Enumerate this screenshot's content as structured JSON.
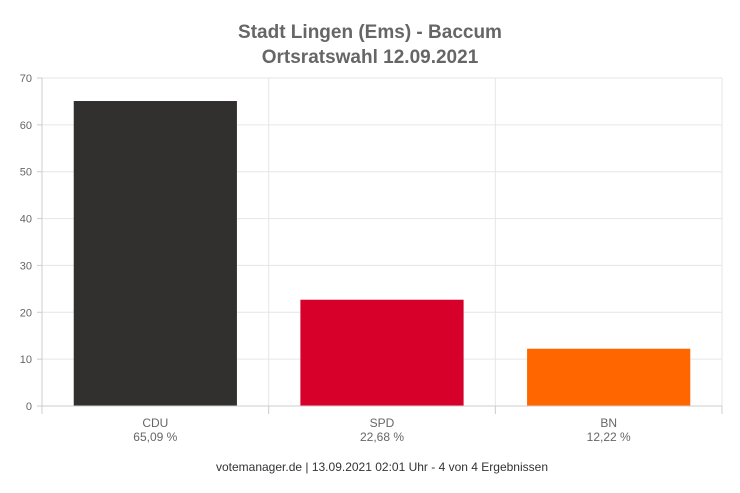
{
  "chart_data": {
    "type": "bar",
    "title_line1": "Stadt Lingen (Ems) - Baccum",
    "title_line2": "Ortsratswahl 12.09.2021",
    "categories": [
      "CDU",
      "SPD",
      "BN"
    ],
    "values": [
      65.09,
      22.68,
      12.22
    ],
    "value_labels": [
      "65,09 %",
      "22,68 %",
      "12,22 %"
    ],
    "colors": [
      "#32302f",
      "#d7002a",
      "#ff6600"
    ],
    "ylim": [
      0,
      70
    ],
    "yticks": [
      "0",
      "10",
      "20",
      "30",
      "40",
      "50",
      "60",
      "70"
    ],
    "grid": true,
    "legend": false
  },
  "footer": "votemanager.de | 13.09.2021 02:01 Uhr - 4 von 4 Ergebnissen"
}
